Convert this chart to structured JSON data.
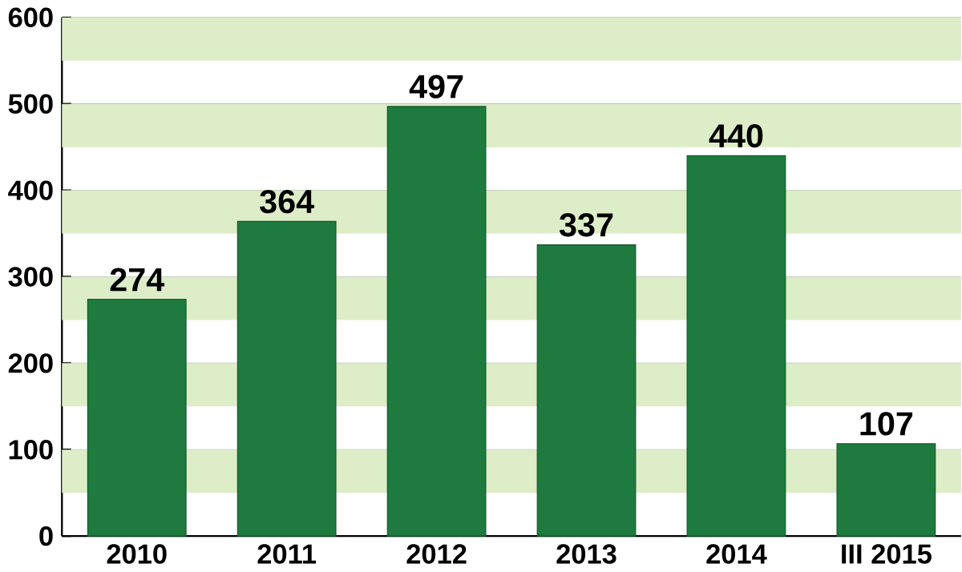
{
  "chart_data": {
    "type": "bar",
    "categories": [
      "2010",
      "2011",
      "2012",
      "2013",
      "2014",
      "III 2015"
    ],
    "values": [
      274,
      364,
      497,
      337,
      440,
      107
    ],
    "color": "#1e7a3e",
    "ylim": [
      0,
      600
    ],
    "yticks": [
      0,
      100,
      200,
      300,
      400,
      500,
      600
    ],
    "grid": "y",
    "data_labels": true,
    "bands": [
      {
        "axis": "y",
        "from": 50,
        "to": 100,
        "color": "#dcedc8"
      },
      {
        "axis": "y",
        "from": 150,
        "to": 200,
        "color": "#dcedc8"
      },
      {
        "axis": "y",
        "from": 250,
        "to": 300,
        "color": "#dcedc8"
      },
      {
        "axis": "y",
        "from": 350,
        "to": 400,
        "color": "#dcedc8"
      },
      {
        "axis": "y",
        "from": 450,
        "to": 500,
        "color": "#dcedc8"
      },
      {
        "axis": "y",
        "from": 550,
        "to": 600,
        "color": "#dcedc8"
      }
    ]
  }
}
